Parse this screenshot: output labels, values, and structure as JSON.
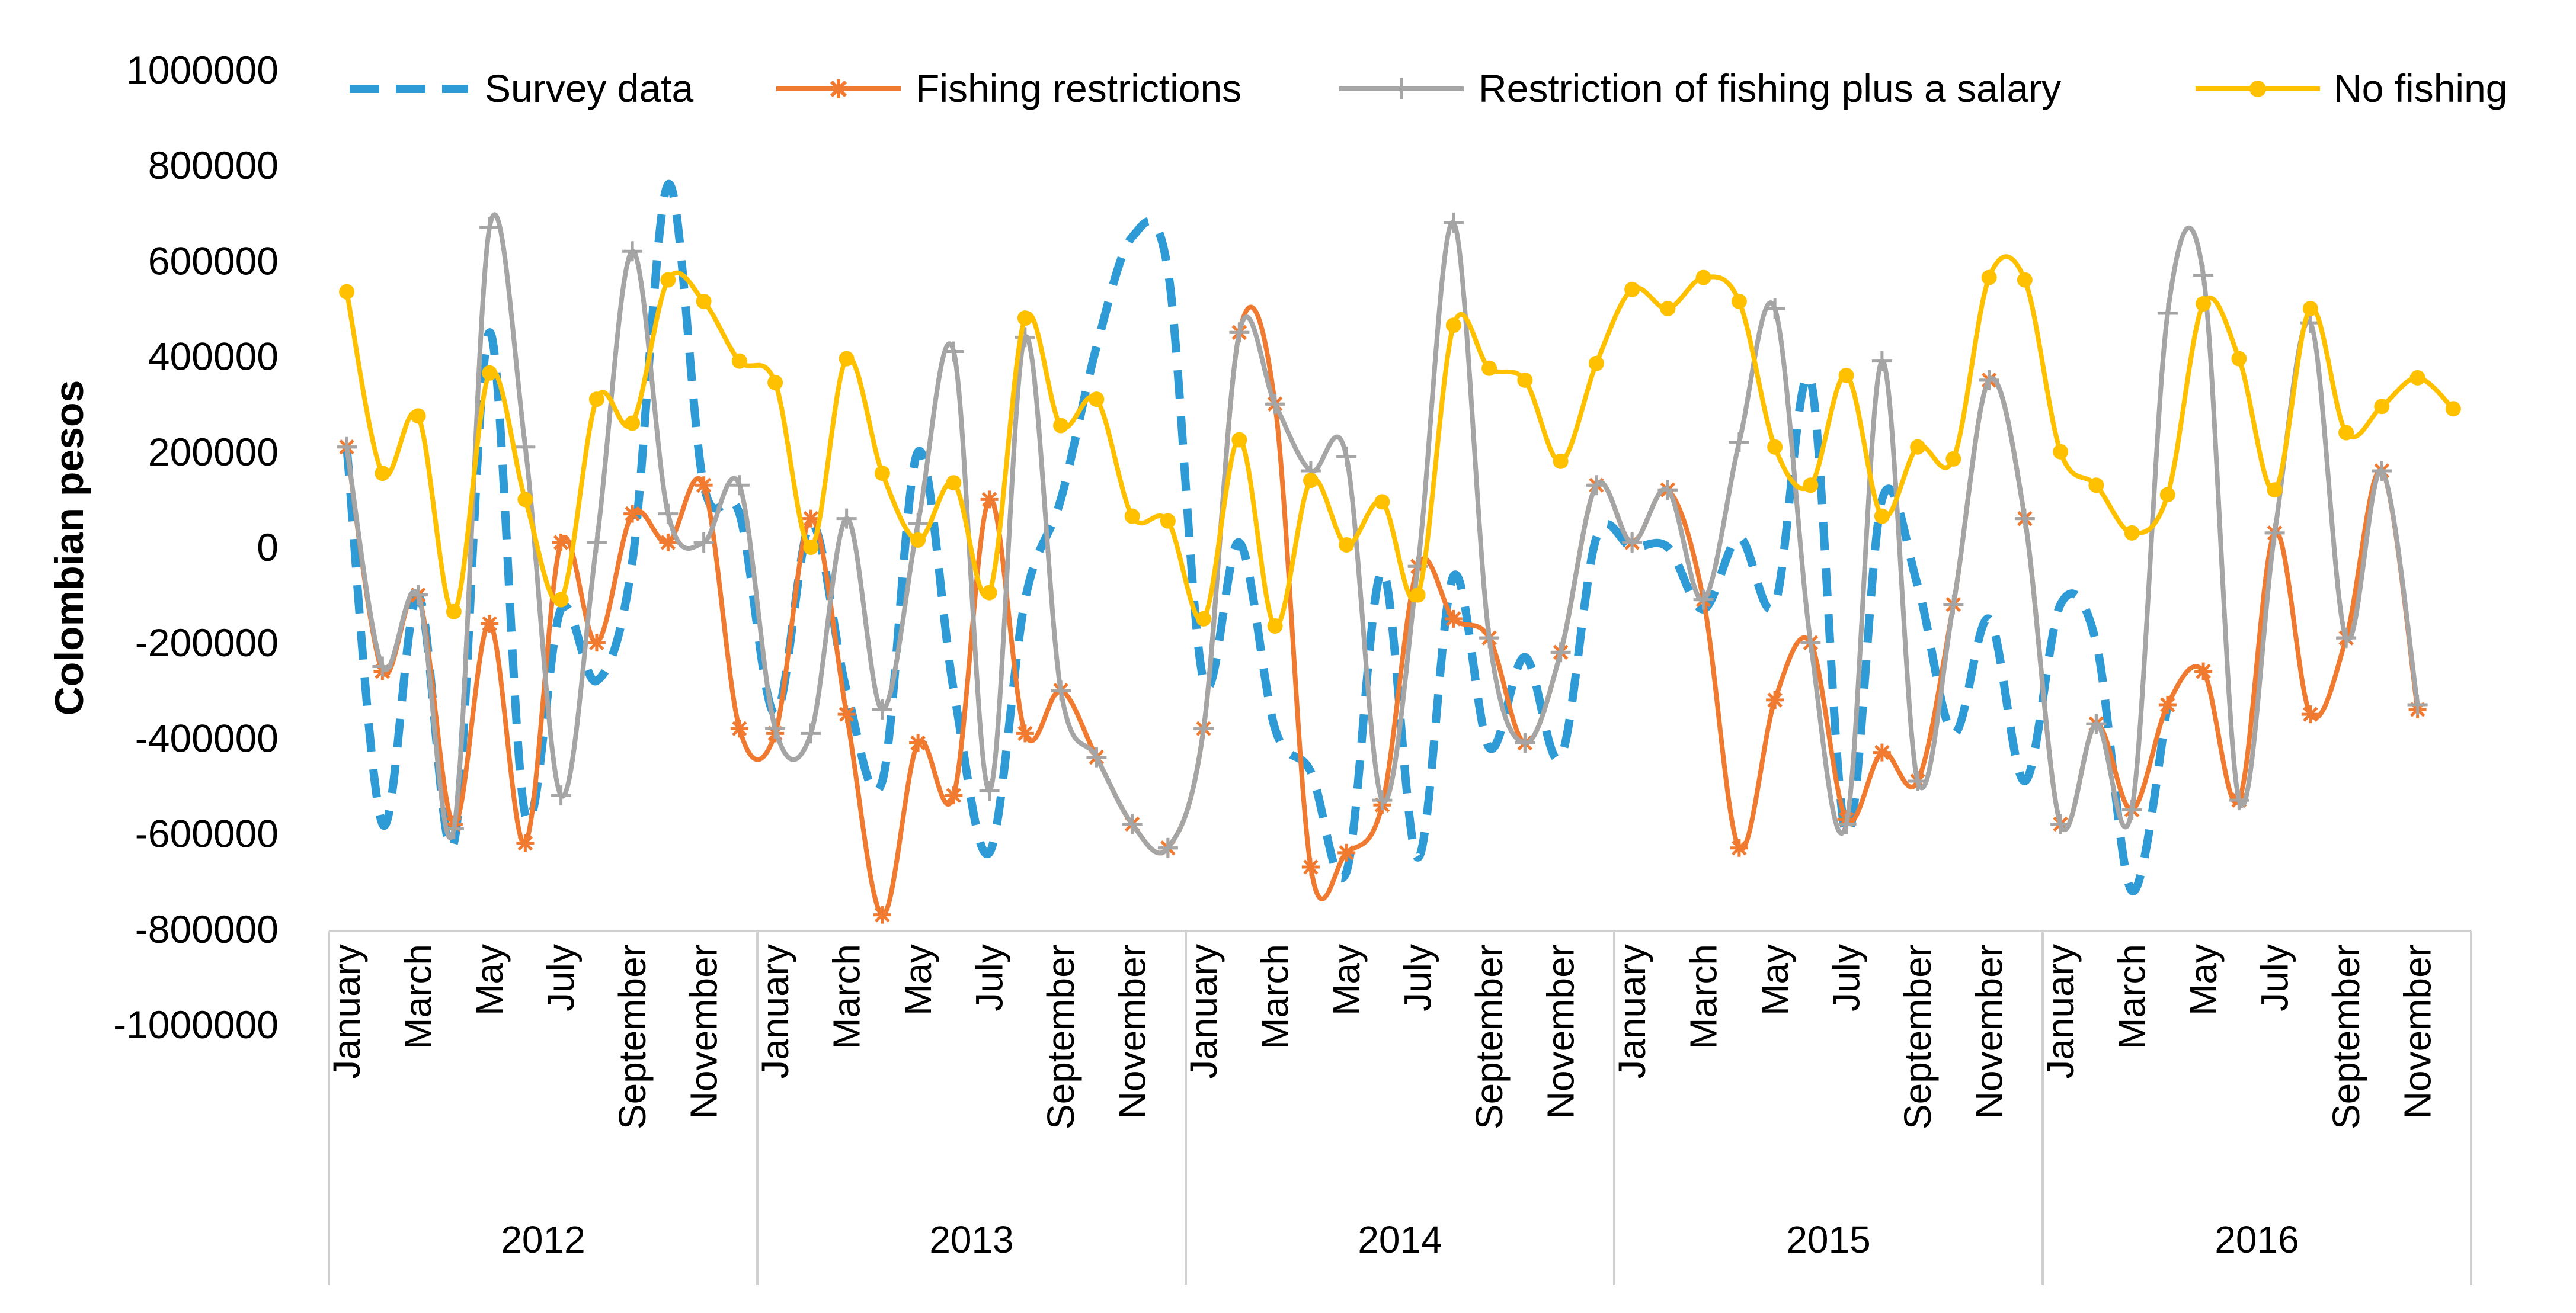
{
  "chart_data": {
    "type": "line",
    "title": "",
    "xlabel": "",
    "ylabel": "Colombian pesos",
    "ylim": [
      -1000000,
      1000000
    ],
    "yticks": [
      1000000,
      800000,
      600000,
      400000,
      200000,
      0,
      -200000,
      -400000,
      -600000,
      -800000,
      -1000000
    ],
    "ytick_labels": [
      "1000000",
      "800000",
      "600000",
      "400000",
      "200000",
      "0",
      "-200000",
      "-400000",
      "-600000",
      "-800000",
      "-1000000"
    ],
    "grid": false,
    "legend_position": "top",
    "years": [
      "2012",
      "2013",
      "2014",
      "2015",
      "2016"
    ],
    "month_labels": [
      "January",
      "",
      "March",
      "",
      "May",
      "",
      "July",
      "",
      "September",
      "",
      "November",
      ""
    ],
    "series": [
      {
        "name": "Survey data",
        "color": "#2E9BD6",
        "style": "dashed",
        "marker": "none",
        "values": [
          210000,
          -580000,
          -100000,
          -620000,
          450000,
          -560000,
          -130000,
          -280000,
          -30000,
          760000,
          130000,
          70000,
          -350000,
          50000,
          -300000,
          -490000,
          200000,
          -300000,
          -640000,
          -110000,
          100000,
          420000,
          650000,
          580000,
          -280000,
          10000,
          -380000,
          -470000,
          -680000,
          -50000,
          -650000,
          -60000,
          -420000,
          -230000,
          -440000,
          20000,
          0,
          0,
          -130000,
          20000,
          -120000,
          350000,
          -600000,
          100000,
          -80000,
          -390000,
          -150000,
          -490000,
          -120000,
          -200000,
          -720000,
          -330000
        ]
      },
      {
        "name": "Fishing restrictions",
        "color": "#F07A30",
        "style": "solid",
        "marker": "asterisk",
        "values": [
          210000,
          -260000,
          -100000,
          -580000,
          -160000,
          -620000,
          10000,
          -200000,
          70000,
          10000,
          130000,
          -380000,
          -390000,
          60000,
          -350000,
          -770000,
          -410000,
          -520000,
          100000,
          -390000,
          -300000,
          -440000,
          -580000,
          -630000,
          -380000,
          450000,
          300000,
          -670000,
          -640000,
          -540000,
          -40000,
          -150000,
          -190000,
          -410000,
          -220000,
          130000,
          10000,
          120000,
          -110000,
          -630000,
          -320000,
          -200000,
          -570000,
          -430000,
          -490000,
          -120000,
          350000,
          60000,
          -580000,
          -370000,
          -550000,
          -330000,
          -260000,
          -530000,
          30000,
          -350000,
          -190000,
          160000,
          -340000
        ]
      },
      {
        "name": "Restriction of fishing plus a salary",
        "color": "#A5A5A5",
        "style": "solid",
        "marker": "plus",
        "values": [
          210000,
          -250000,
          -100000,
          -590000,
          670000,
          210000,
          -520000,
          10000,
          620000,
          70000,
          10000,
          130000,
          -380000,
          -390000,
          60000,
          -340000,
          50000,
          410000,
          -510000,
          440000,
          -300000,
          -440000,
          -580000,
          -630000,
          -380000,
          450000,
          300000,
          160000,
          190000,
          -530000,
          -40000,
          680000,
          -190000,
          -410000,
          -220000,
          130000,
          10000,
          120000,
          -110000,
          220000,
          500000,
          -200000,
          -580000,
          390000,
          -490000,
          -120000,
          350000,
          60000,
          -580000,
          -370000,
          -550000,
          490000,
          570000,
          -530000,
          30000,
          470000,
          -190000,
          160000,
          -330000
        ]
      },
      {
        "name": "No fishing",
        "color": "#FFC000",
        "style": "solid",
        "marker": "circle",
        "values": [
          535000,
          155000,
          275000,
          -135000,
          365000,
          100000,
          -110000,
          310000,
          260000,
          560000,
          515000,
          390000,
          345000,
          0,
          395000,
          155000,
          15000,
          135000,
          -95000,
          480000,
          255000,
          310000,
          65000,
          55000,
          -150000,
          225000,
          -165000,
          140000,
          5000,
          95000,
          -100000,
          465000,
          375000,
          350000,
          180000,
          385000,
          540000,
          500000,
          565000,
          515000,
          210000,
          130000,
          360000,
          65000,
          210000,
          185000,
          565000,
          560000,
          200000,
          130000,
          30000,
          110000,
          510000,
          395000,
          120000,
          500000,
          240000,
          295000,
          355000,
          290000
        ]
      }
    ]
  }
}
